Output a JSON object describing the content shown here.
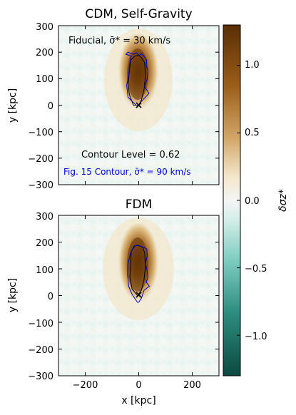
{
  "chart_data": [
    {
      "type": "heatmap",
      "title": "CDM, Self-Gravity",
      "xlabel": "",
      "ylabel": "y [kpc]",
      "xlim": [
        -300,
        300
      ],
      "ylim": [
        -300,
        300
      ],
      "x_ticks": [
        -200,
        0,
        200
      ],
      "y_ticks": [
        -300,
        -200,
        -100,
        0,
        100,
        200,
        300
      ],
      "y_tick_labels": [
        "−300",
        "−200",
        "−100",
        "0",
        "100",
        "200",
        "300"
      ],
      "marker": {
        "x": 0,
        "y": 0,
        "symbol": "×"
      },
      "annotations": {
        "fiducial": "Fiducial, σ̄* = 30 km/s",
        "contour_level": "Contour Level = 0.62",
        "fig15_contour": "Fig. 15 Contour, σ̄* = 90 km/s"
      },
      "black_contour": [
        [
          -20,
          0
        ],
        [
          -35,
          40
        ],
        [
          -40,
          80
        ],
        [
          -35,
          130
        ],
        [
          -30,
          170
        ],
        [
          -15,
          185
        ],
        [
          -2,
          188
        ],
        [
          10,
          180
        ],
        [
          22,
          160
        ],
        [
          25,
          110
        ],
        [
          20,
          60
        ],
        [
          10,
          20
        ],
        [
          0,
          0
        ]
      ],
      "blue_contour": [
        [
          -10,
          0
        ],
        [
          -40,
          30
        ],
        [
          -45,
          75
        ],
        [
          -38,
          110
        ],
        [
          -35,
          150
        ],
        [
          -28,
          185
        ],
        [
          -35,
          188
        ],
        [
          -48,
          192
        ],
        [
          -40,
          200
        ],
        [
          -20,
          192
        ],
        [
          -8,
          198
        ],
        [
          0,
          188
        ],
        [
          10,
          194
        ],
        [
          20,
          185
        ],
        [
          30,
          170
        ],
        [
          28,
          150
        ],
        [
          35,
          130
        ],
        [
          32,
          100
        ],
        [
          22,
          70
        ],
        [
          38,
          45
        ],
        [
          25,
          30
        ],
        [
          10,
          15
        ],
        [
          0,
          0
        ]
      ]
    },
    {
      "type": "heatmap",
      "title": "FDM",
      "xlabel": "x [kpc]",
      "ylabel": "y [kpc]",
      "xlim": [
        -300,
        300
      ],
      "ylim": [
        -300,
        300
      ],
      "x_ticks": [
        -200,
        0,
        200
      ],
      "x_tick_labels": [
        "−200",
        "0",
        "200"
      ],
      "y_ticks": [
        -300,
        -200,
        -100,
        0,
        100,
        200,
        300
      ],
      "y_tick_labels": [
        "−300",
        "−200",
        "−100",
        "0",
        "100",
        "200",
        "300"
      ],
      "marker": {
        "x": 0,
        "y": 0,
        "symbol": "×"
      },
      "black_contour": [
        [
          -5,
          0
        ],
        [
          -25,
          25
        ],
        [
          -33,
          70
        ],
        [
          -30,
          120
        ],
        [
          -28,
          165
        ],
        [
          -15,
          185
        ],
        [
          0,
          188
        ],
        [
          15,
          180
        ],
        [
          22,
          160
        ],
        [
          25,
          110
        ],
        [
          20,
          60
        ],
        [
          10,
          20
        ],
        [
          -5,
          0
        ]
      ],
      "blue_contour": [
        [
          -5,
          -25
        ],
        [
          -25,
          5
        ],
        [
          -38,
          35
        ],
        [
          -42,
          80
        ],
        [
          -40,
          120
        ],
        [
          -30,
          160
        ],
        [
          -18,
          185
        ],
        [
          -5,
          188
        ],
        [
          15,
          182
        ],
        [
          30,
          175
        ],
        [
          32,
          150
        ],
        [
          25,
          120
        ],
        [
          32,
          90
        ],
        [
          35,
          70
        ],
        [
          28,
          50
        ],
        [
          40,
          35
        ],
        [
          20,
          20
        ],
        [
          10,
          -10
        ],
        [
          0,
          -25
        ]
      ]
    },
    {
      "type": "colorbar",
      "label": "δσz*",
      "range": [
        -1.3,
        1.3
      ],
      "ticks": [
        -1.0,
        -0.5,
        0.0,
        0.5,
        1.0
      ],
      "tick_labels": [
        "−1.0",
        "−0.5",
        "0.0",
        "0.5",
        "1.0"
      ],
      "colors": {
        "low": "#0b4a40",
        "mid_low": "#7ecdc1",
        "center": "#f5f5f5",
        "mid_high": "#d2a566",
        "high": "#5a2e06"
      }
    }
  ]
}
